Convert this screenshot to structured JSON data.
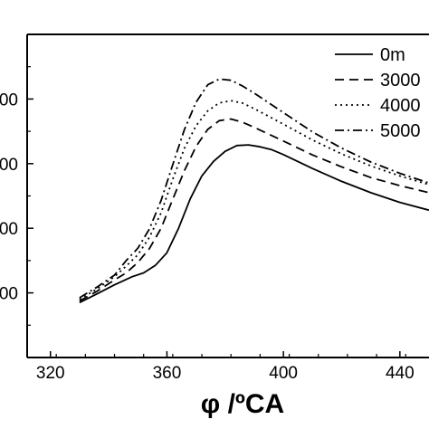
{
  "chart_data": {
    "type": "line",
    "xlabel": "φ /ºCA",
    "ylabel": "",
    "xlim": [
      312,
      450
    ],
    "ylim": [
      0,
      1.0
    ],
    "xticks": [
      320,
      360,
      400,
      440
    ],
    "yticks": [
      0.2,
      0.4,
      0.6,
      0.8
    ],
    "ytick_labels": [
      "00",
      "00",
      "00",
      "00"
    ],
    "grid": false,
    "legend_position": "top-right",
    "series": [
      {
        "name": "0m",
        "dash": "",
        "x": [
          330,
          336,
          342,
          348,
          352,
          356,
          360,
          364,
          368,
          372,
          376,
          380,
          384,
          388,
          392,
          396,
          400,
          410,
          420,
          430,
          440,
          450
        ],
        "y": [
          0.17,
          0.197,
          0.225,
          0.25,
          0.262,
          0.285,
          0.324,
          0.4,
          0.491,
          0.562,
          0.607,
          0.638,
          0.656,
          0.658,
          0.652,
          0.643,
          0.628,
          0.585,
          0.545,
          0.51,
          0.48,
          0.456
        ]
      },
      {
        "name": "3000",
        "dash": "10,6",
        "x": [
          330,
          336,
          342,
          346,
          350,
          354,
          358,
          362,
          366,
          370,
          374,
          378,
          382,
          386,
          390,
          400,
          410,
          420,
          430,
          440,
          450
        ],
        "y": [
          0.175,
          0.205,
          0.24,
          0.262,
          0.294,
          0.337,
          0.4,
          0.49,
          0.578,
          0.653,
          0.706,
          0.733,
          0.738,
          0.728,
          0.712,
          0.67,
          0.627,
          0.59,
          0.557,
          0.532,
          0.51
        ]
      },
      {
        "name": "4000",
        "dash": "2,4",
        "x": [
          330,
          336,
          342,
          346,
          350,
          354,
          358,
          362,
          366,
          370,
          374,
          378,
          382,
          386,
          390,
          400,
          410,
          420,
          430,
          440,
          450
        ],
        "y": [
          0.18,
          0.212,
          0.25,
          0.283,
          0.318,
          0.372,
          0.448,
          0.552,
          0.647,
          0.717,
          0.763,
          0.788,
          0.795,
          0.787,
          0.77,
          0.722,
          0.673,
          0.63,
          0.593,
          0.562,
          0.535
        ]
      },
      {
        "name": "5000",
        "dash": "10,4,2,4",
        "x": [
          330,
          336,
          342,
          346,
          350,
          354,
          358,
          362,
          366,
          370,
          374,
          378,
          382,
          386,
          390,
          400,
          410,
          420,
          430,
          440,
          450
        ],
        "y": [
          0.185,
          0.218,
          0.255,
          0.3,
          0.338,
          0.398,
          0.486,
          0.597,
          0.705,
          0.79,
          0.844,
          0.862,
          0.858,
          0.84,
          0.818,
          0.758,
          0.698,
          0.648,
          0.605,
          0.57,
          0.54
        ]
      }
    ]
  }
}
